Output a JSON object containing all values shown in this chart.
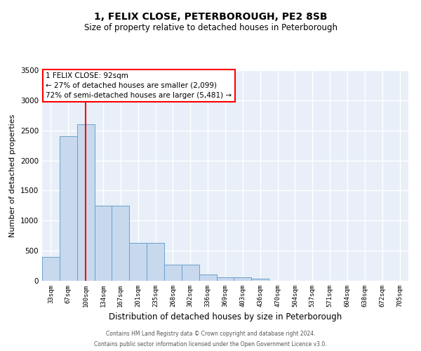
{
  "title": "1, FELIX CLOSE, PETERBOROUGH, PE2 8SB",
  "subtitle": "Size of property relative to detached houses in Peterborough",
  "xlabel": "Distribution of detached houses by size in Peterborough",
  "ylabel": "Number of detached properties",
  "categories": [
    "33sqm",
    "67sqm",
    "100sqm",
    "134sqm",
    "167sqm",
    "201sqm",
    "235sqm",
    "268sqm",
    "302sqm",
    "336sqm",
    "369sqm",
    "403sqm",
    "436sqm",
    "470sqm",
    "504sqm",
    "537sqm",
    "571sqm",
    "604sqm",
    "638sqm",
    "672sqm",
    "705sqm"
  ],
  "bar_values": [
    400,
    2400,
    2600,
    1250,
    1250,
    630,
    630,
    270,
    270,
    100,
    60,
    55,
    40,
    0,
    0,
    0,
    0,
    0,
    0,
    0,
    0
  ],
  "bar_color": "#c8d9ee",
  "bar_edge_color": "#6aa0cc",
  "vline_x_index": 2,
  "vline_color": "red",
  "ylim": [
    0,
    3500
  ],
  "yticks": [
    0,
    500,
    1000,
    1500,
    2000,
    2500,
    3000,
    3500
  ],
  "annotation_title": "1 FELIX CLOSE: 92sqm",
  "annotation_line1": "← 27% of detached houses are smaller (2,099)",
  "annotation_line2": "72% of semi-detached houses are larger (5,481) →",
  "annotation_box_color": "white",
  "annotation_box_edge_color": "red",
  "footer_line1": "Contains HM Land Registry data © Crown copyright and database right 2024.",
  "footer_line2": "Contains public sector information licensed under the Open Government Licence v3.0.",
  "background_color": "#e8eff8",
  "grid_color": "#ffffff",
  "title_fontsize": 10,
  "subtitle_fontsize": 8.5,
  "xlabel_fontsize": 8.5,
  "ylabel_fontsize": 8,
  "tick_fontsize": 6.5,
  "annotation_fontsize": 7.5,
  "footer_fontsize": 5.5
}
